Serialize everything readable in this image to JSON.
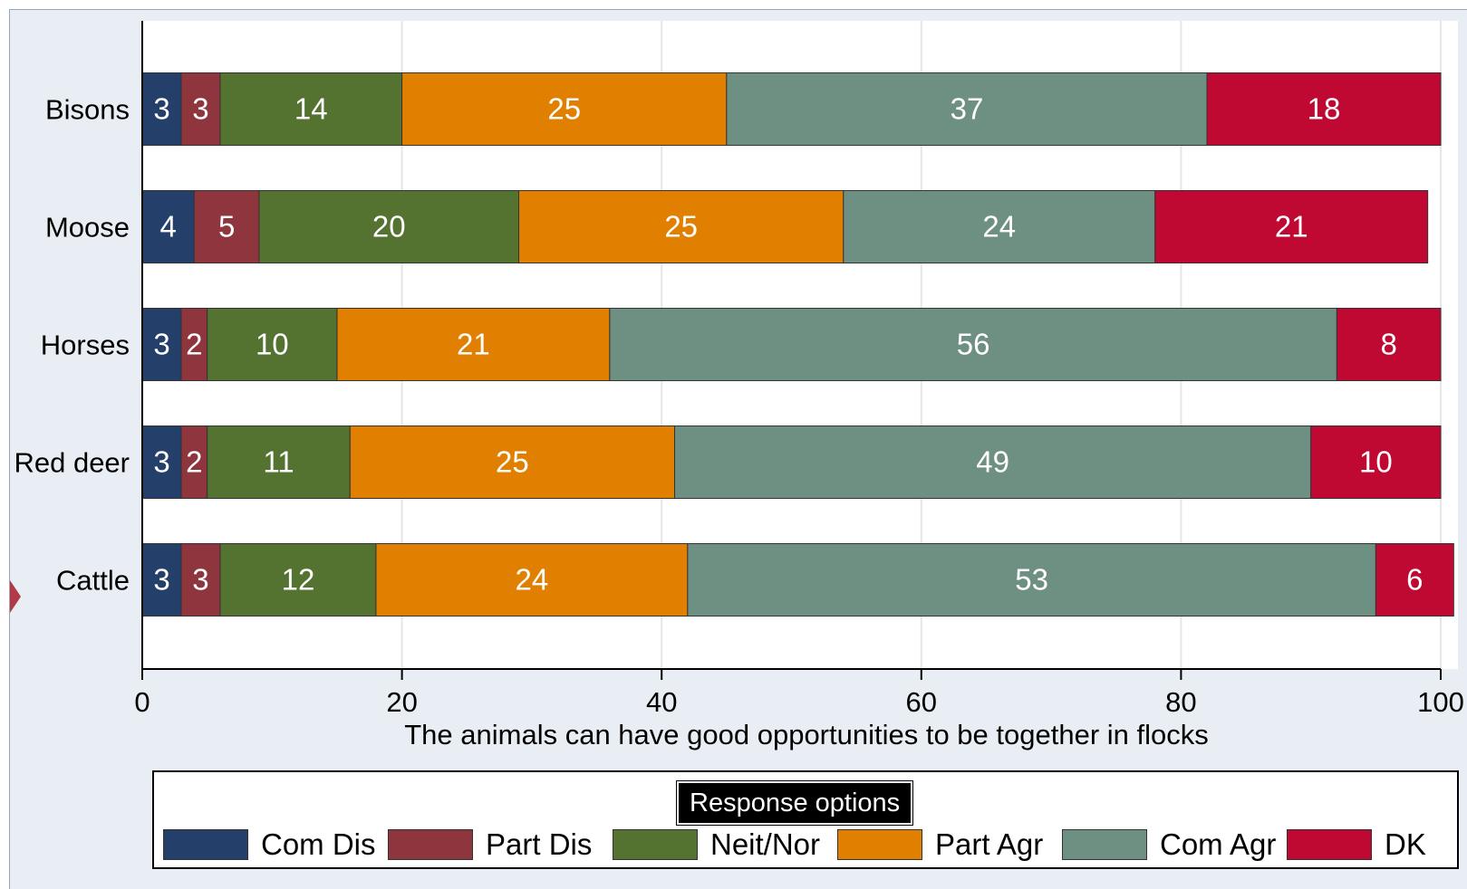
{
  "chart_data": {
    "type": "bar",
    "orientation": "horizontal",
    "stacked": true,
    "categories": [
      "Bisons",
      "Moose",
      "Horses",
      "Red deer",
      "Cattle"
    ],
    "series": [
      {
        "name": "Com Dis",
        "color": "#253f6b",
        "values": [
          3,
          4,
          3,
          3,
          3
        ]
      },
      {
        "name": "Part Dis",
        "color": "#8f353e",
        "values": [
          3,
          5,
          2,
          2,
          3
        ]
      },
      {
        "name": "Neit/Nor",
        "color": "#547230",
        "values": [
          14,
          20,
          10,
          11,
          12
        ]
      },
      {
        "name": "Part Agr",
        "color": "#e17f00",
        "values": [
          25,
          25,
          21,
          25,
          24
        ]
      },
      {
        "name": "Com Agr",
        "color": "#6d9083",
        "values": [
          37,
          24,
          56,
          49,
          53
        ]
      },
      {
        "name": "DK",
        "color": "#c00932",
        "values": [
          18,
          21,
          8,
          10,
          6
        ]
      }
    ],
    "xlabel": "The animals can have good opportunities to be together in flocks",
    "xlim": [
      0,
      100
    ],
    "xticks": [
      "0",
      "20",
      "40",
      "60",
      "80",
      "100"
    ],
    "legend_title": "Response options",
    "legend_position": "bottom",
    "grid": true
  }
}
